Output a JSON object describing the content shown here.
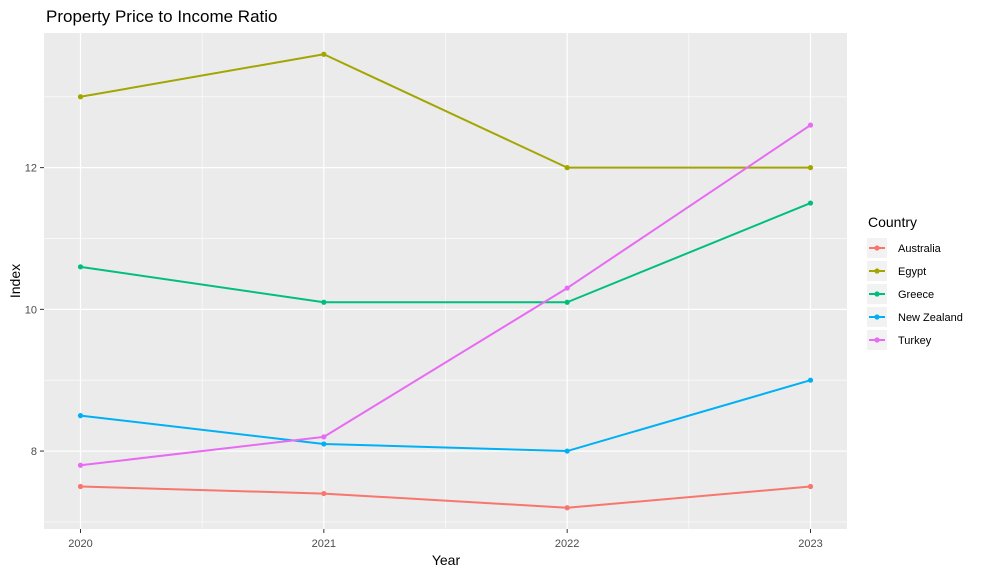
{
  "chart_data": {
    "type": "line",
    "title": "Property Price to Income Ratio",
    "xlabel": "Year",
    "ylabel": "Index",
    "x": [
      2020,
      2021,
      2022,
      2023
    ],
    "xlim": [
      2019.85,
      2023.15
    ],
    "ylim": [
      6.9,
      13.9
    ],
    "y_ticks": [
      8,
      10,
      12
    ],
    "grid": true,
    "legend_title": "Country",
    "legend_position": "right",
    "series": [
      {
        "name": "Australia",
        "color": "#F8766D",
        "values": [
          7.5,
          7.4,
          7.2,
          7.5
        ]
      },
      {
        "name": "Egypt",
        "color": "#A3A500",
        "values": [
          13.0,
          13.6,
          12.0,
          12.0
        ]
      },
      {
        "name": "Greece",
        "color": "#00BF7D",
        "values": [
          10.6,
          10.1,
          10.1,
          11.5
        ]
      },
      {
        "name": "New Zealand",
        "color": "#00B0F6",
        "values": [
          8.5,
          8.1,
          8.0,
          9.0
        ]
      },
      {
        "name": "Turkey",
        "color": "#E76BF3",
        "values": [
          7.8,
          8.2,
          10.3,
          12.6
        ]
      }
    ]
  }
}
